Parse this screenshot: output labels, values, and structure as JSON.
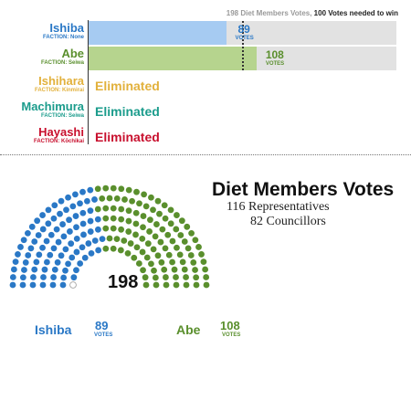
{
  "header": {
    "total_text": "198 Diet Members Votes,",
    "needed_text": "100 Votes needed to win"
  },
  "candidates": [
    {
      "name": "Ishiba",
      "faction": "FACTION: None",
      "color": "#2a78c6",
      "bar_color": "#a6cbf2",
      "votes": 89,
      "votes_label": "VOTES",
      "status": ""
    },
    {
      "name": "Abe",
      "faction": "FACTION: Seiwa",
      "color": "#5a8f2d",
      "bar_color": "#b6d48e",
      "votes": 108,
      "votes_label": "VOTES",
      "status": ""
    },
    {
      "name": "Ishihara",
      "faction": "FACTION: Kinmirai",
      "color": "#e2b13c",
      "status": "Eliminated"
    },
    {
      "name": "Machimura",
      "faction": "FACTION: Seiwa",
      "color": "#1b9c8c",
      "status": "Eliminated"
    },
    {
      "name": "Hayashi",
      "faction": "FACTION: Kōchikai",
      "color": "#c8102e",
      "status": "Eliminated"
    }
  ],
  "chart_data": {
    "type": "bar",
    "categories": [
      "Ishiba",
      "Abe"
    ],
    "values": [
      89,
      108
    ],
    "total_votes": 198,
    "needed_to_win": 100,
    "xlim": [
      0,
      198
    ],
    "seats": {
      "Ishiba": 89,
      "Abe": 108,
      "empty": 1
    }
  },
  "parliament": {
    "total": "198",
    "title": "Diet Members Votes",
    "line1": "116 Representatives",
    "line2": "82 Councillors",
    "empty_color": "#ffffff"
  },
  "summary": [
    {
      "name": "Ishiba",
      "votes": "89",
      "label": "VOTES",
      "color": "#2a78c6"
    },
    {
      "name": "Abe",
      "votes": "108",
      "label": "VOTES",
      "color": "#5a8f2d"
    }
  ]
}
